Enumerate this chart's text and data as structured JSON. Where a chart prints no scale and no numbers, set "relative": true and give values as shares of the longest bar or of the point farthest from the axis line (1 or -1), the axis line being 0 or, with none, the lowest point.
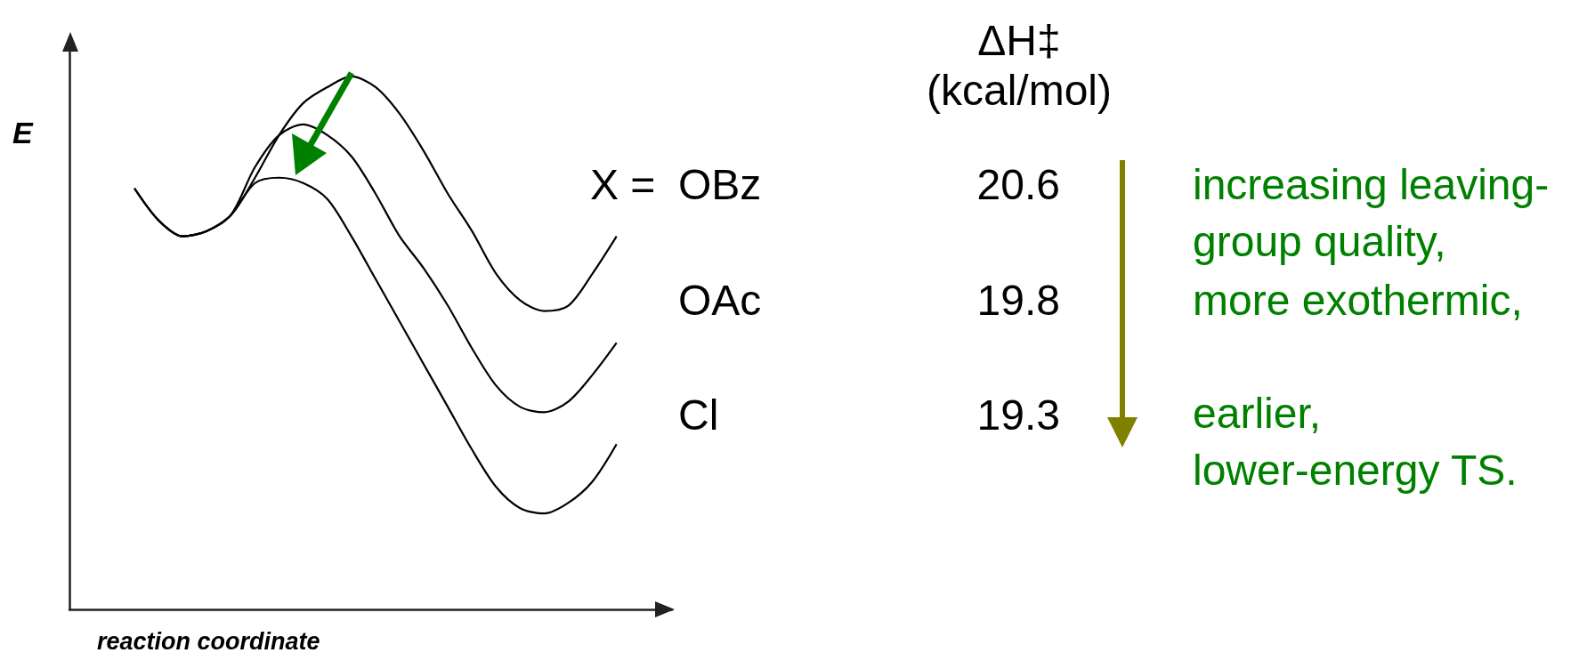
{
  "chart_data": [
    {
      "type": "line",
      "relative": true,
      "xlabel": "reaction coordinate",
      "ylabel": "E",
      "categories": [
        null,
        null,
        null,
        null,
        null,
        null,
        null,
        null,
        null,
        null,
        null,
        null,
        null,
        null,
        null,
        null,
        null,
        null,
        null,
        null,
        null
      ],
      "series": [
        {
          "color": "#000000",
          "values": [
            0.79,
            0.73,
            0.7,
            0.71,
            0.74,
            0.81,
            0.89,
            0.95,
            0.98,
            1.0,
            0.98,
            0.93,
            0.86,
            0.78,
            0.71,
            0.63,
            0.58,
            0.56,
            0.57,
            0.63,
            0.7
          ]
        },
        {
          "color": "#000000",
          "values": [
            0.79,
            0.73,
            0.7,
            0.71,
            0.74,
            0.83,
            0.89,
            0.91,
            0.89,
            0.85,
            0.78,
            0.7,
            0.64,
            0.57,
            0.49,
            0.42,
            0.38,
            0.37,
            0.39,
            0.44,
            0.5
          ]
        },
        {
          "color": "#000000",
          "values": [
            0.79,
            0.73,
            0.7,
            0.71,
            0.74,
            0.8,
            0.81,
            0.8,
            0.77,
            0.7,
            0.62,
            0.54,
            0.46,
            0.38,
            0.3,
            0.23,
            0.19,
            0.18,
            0.2,
            0.24,
            0.31
          ]
        }
      ]
    },
    {
      "type": "other",
      "title": "ΔH‡ (kcal/mol)",
      "ylabel": "X =",
      "categories": [
        "OBz",
        "OAc",
        "Cl"
      ],
      "values": [
        20.6,
        19.8,
        19.3
      ],
      "data_labels": true,
      "annotations": [
        "increasing leaving-group quality,",
        "more exothermic,",
        "earlier,",
        "lower-energy TS."
      ]
    }
  ]
}
